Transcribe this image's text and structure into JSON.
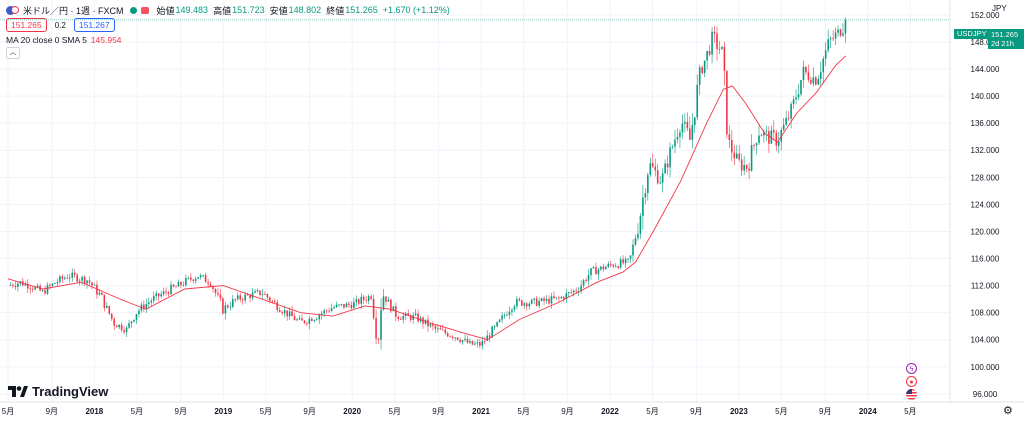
{
  "header": {
    "title": "米ドル／円 · 1週 · FXCM",
    "open_label": "始値",
    "open": "149.483",
    "high_label": "高値",
    "high": "151.723",
    "low_label": "安値",
    "low": "148.802",
    "close_label": "終値",
    "close": "151.265",
    "change": "+1.670 (+1.12%)",
    "sell_price": "151.265",
    "spread": "0.2",
    "buy_price": "151.267",
    "indicator_label": "MA 20 close 0 SMA 5",
    "indicator_value": "145.954",
    "currency": "JPY"
  },
  "price_tag": {
    "symbol": "USDJPY",
    "price": "151.265",
    "countdown": "2d 21h"
  },
  "branding": {
    "logo_text": "TradingView"
  },
  "colors": {
    "up": "#089981",
    "down": "#f23645",
    "ma": "#f23645",
    "grid": "#f0f3fa",
    "axis_text": "#131722"
  },
  "icons": [
    "flag-icon",
    "market-open-icon",
    "chart-type-icon",
    "collapse-icon",
    "tradingview-logo-icon",
    "lightning-icon",
    "record-icon",
    "us-flag-icon",
    "settings-icon"
  ],
  "chart_data": {
    "type": "candlestick",
    "title": "米ドル／円 · 1週 · FXCM",
    "ylim": [
      94.8,
      154.2
    ],
    "y_ticks": [
      96,
      100,
      104,
      108,
      112,
      116,
      120,
      124,
      128,
      132,
      136,
      140,
      144,
      148,
      152
    ],
    "y_tick_labels": [
      "96.000",
      "100.000",
      "104.000",
      "108.000",
      "112.000",
      "116.000",
      "120.000",
      "124.000",
      "128.000",
      "132.000",
      "136.000",
      "140.000",
      "144.000",
      "148.000",
      "152.000"
    ],
    "x_range": [
      2017.33,
      2024.7
    ],
    "x_ticks": [
      {
        "t": 2017.33,
        "label": "5月"
      },
      {
        "t": 2017.67,
        "label": "9月"
      },
      {
        "t": 2018.0,
        "label": "2018"
      },
      {
        "t": 2018.33,
        "label": "5月"
      },
      {
        "t": 2018.67,
        "label": "9月"
      },
      {
        "t": 2019.0,
        "label": "2019"
      },
      {
        "t": 2019.33,
        "label": "5月"
      },
      {
        "t": 2019.67,
        "label": "9月"
      },
      {
        "t": 2020.0,
        "label": "2020"
      },
      {
        "t": 2020.33,
        "label": "5月"
      },
      {
        "t": 2020.67,
        "label": "9月"
      },
      {
        "t": 2021.0,
        "label": "2021"
      },
      {
        "t": 2021.33,
        "label": "5月"
      },
      {
        "t": 2021.67,
        "label": "9月"
      },
      {
        "t": 2022.0,
        "label": "2022"
      },
      {
        "t": 2022.33,
        "label": "5月"
      },
      {
        "t": 2022.67,
        "label": "9月"
      },
      {
        "t": 2023.0,
        "label": "2023"
      },
      {
        "t": 2023.33,
        "label": "5月"
      },
      {
        "t": 2023.67,
        "label": "9月"
      },
      {
        "t": 2024.0,
        "label": "2024"
      },
      {
        "t": 2024.33,
        "label": "5月"
      }
    ],
    "price_path": [
      [
        2017.33,
        112.0
      ],
      [
        2017.42,
        112.5
      ],
      [
        2017.5,
        112.0
      ],
      [
        2017.6,
        111.0
      ],
      [
        2017.7,
        112.5
      ],
      [
        2017.8,
        113.5
      ],
      [
        2017.95,
        112.8
      ],
      [
        2018.05,
        110.5
      ],
      [
        2018.15,
        106.5
      ],
      [
        2018.25,
        105.5
      ],
      [
        2018.32,
        108.0
      ],
      [
        2018.45,
        110.0
      ],
      [
        2018.55,
        111.0
      ],
      [
        2018.7,
        112.5
      ],
      [
        2018.8,
        113.5
      ],
      [
        2018.9,
        112.5
      ],
      [
        2019.0,
        108.5
      ],
      [
        2019.1,
        110.0
      ],
      [
        2019.3,
        111.0
      ],
      [
        2019.45,
        108.5
      ],
      [
        2019.6,
        106.5
      ],
      [
        2019.72,
        107.5
      ],
      [
        2019.85,
        108.8
      ],
      [
        2020.0,
        109.2
      ],
      [
        2020.15,
        110.5
      ],
      [
        2020.2,
        103.0
      ],
      [
        2020.23,
        111.0
      ],
      [
        2020.35,
        107.5
      ],
      [
        2020.5,
        107.3
      ],
      [
        2020.65,
        105.5
      ],
      [
        2020.8,
        104.5
      ],
      [
        2020.92,
        103.3
      ],
      [
        2021.0,
        103.3
      ],
      [
        2021.1,
        105.5
      ],
      [
        2021.25,
        109.5
      ],
      [
        2021.4,
        109.5
      ],
      [
        2021.6,
        110.0
      ],
      [
        2021.75,
        111.5
      ],
      [
        2021.85,
        114.0
      ],
      [
        2022.0,
        115.0
      ],
      [
        2022.15,
        115.5
      ],
      [
        2022.22,
        121.0
      ],
      [
        2022.3,
        130.0
      ],
      [
        2022.4,
        127.5
      ],
      [
        2022.55,
        136.5
      ],
      [
        2022.62,
        133.5
      ],
      [
        2022.7,
        143.5
      ],
      [
        2022.8,
        148.5
      ],
      [
        2022.87,
        146.5
      ],
      [
        2022.92,
        133.0
      ],
      [
        2023.0,
        130.0
      ],
      [
        2023.07,
        129.5
      ],
      [
        2023.15,
        135.0
      ],
      [
        2023.22,
        134.0
      ],
      [
        2023.3,
        133.5
      ],
      [
        2023.4,
        137.5
      ],
      [
        2023.5,
        143.5
      ],
      [
        2023.6,
        142.5
      ],
      [
        2023.7,
        148.0
      ],
      [
        2023.78,
        149.5
      ],
      [
        2023.83,
        151.265
      ]
    ],
    "ma_path": [
      [
        2017.33,
        113.0
      ],
      [
        2017.6,
        111.5
      ],
      [
        2017.9,
        112.5
      ],
      [
        2018.2,
        110.0
      ],
      [
        2018.4,
        108.5
      ],
      [
        2018.7,
        111.5
      ],
      [
        2019.0,
        112.0
      ],
      [
        2019.3,
        110.0
      ],
      [
        2019.6,
        108.0
      ],
      [
        2019.85,
        107.5
      ],
      [
        2020.1,
        109.0
      ],
      [
        2020.3,
        108.5
      ],
      [
        2020.6,
        106.5
      ],
      [
        2020.9,
        104.8
      ],
      [
        2021.05,
        104.0
      ],
      [
        2021.3,
        107.0
      ],
      [
        2021.6,
        109.5
      ],
      [
        2021.9,
        112.5
      ],
      [
        2022.1,
        114.0
      ],
      [
        2022.2,
        115.5
      ],
      [
        2022.35,
        120.5
      ],
      [
        2022.55,
        127.5
      ],
      [
        2022.75,
        136.0
      ],
      [
        2022.88,
        141.0
      ],
      [
        2022.95,
        141.5
      ],
      [
        2023.05,
        139.0
      ],
      [
        2023.2,
        134.5
      ],
      [
        2023.3,
        133.2
      ],
      [
        2023.45,
        137.5
      ],
      [
        2023.6,
        140.5
      ],
      [
        2023.75,
        144.5
      ],
      [
        2023.83,
        145.954
      ]
    ],
    "last_close": 151.265,
    "ma": {
      "name": "MA 20 close 0 SMA 5",
      "value": 145.954
    }
  }
}
